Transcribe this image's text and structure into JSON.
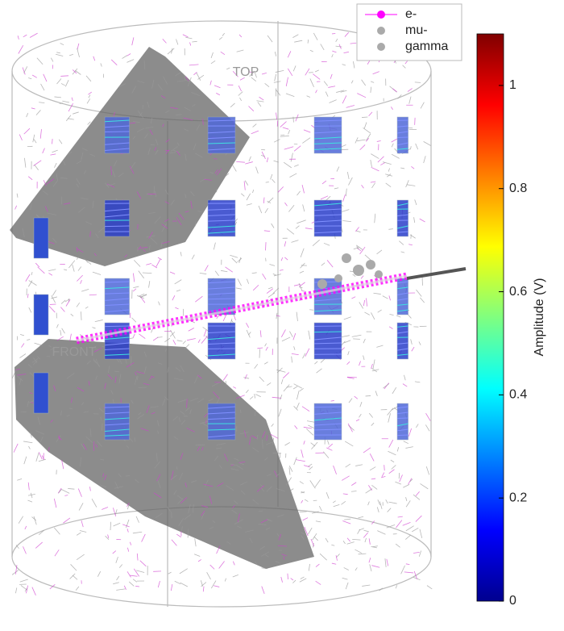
{
  "chart_data": {
    "type": "event-display",
    "annotations": [
      "TOP",
      "FRONT"
    ],
    "series": [
      {
        "name": "e-",
        "color": "#ff00ff"
      },
      {
        "name": "mu-",
        "color": "#aaaaaa"
      },
      {
        "name": "gamma",
        "color": "#aaaaaa"
      }
    ],
    "colorbar": {
      "label": "Amplitude (V)",
      "lim": [
        0,
        1.1
      ],
      "ticks": [
        0,
        0.2,
        0.4,
        0.6,
        0.8,
        1
      ],
      "colormap": "jet"
    }
  }
}
